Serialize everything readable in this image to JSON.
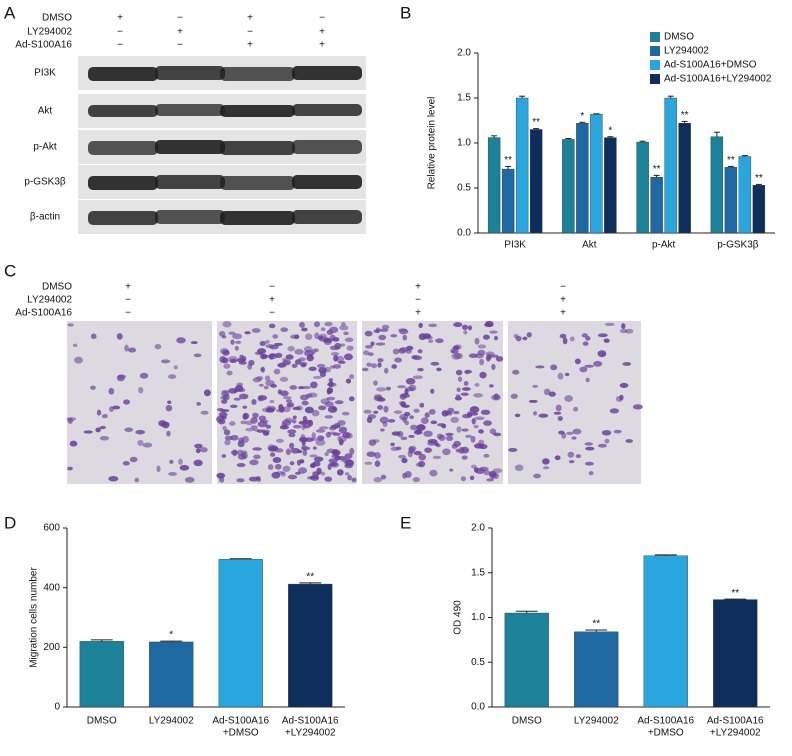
{
  "panel_labels": [
    "A",
    "B",
    "C",
    "D",
    "E"
  ],
  "blot": {
    "treatments": [
      {
        "name": "DMSO",
        "signs": [
          "+",
          "−",
          "+",
          "−"
        ]
      },
      {
        "name": "LY294002",
        "signs": [
          "−",
          "+",
          "−",
          "+"
        ]
      },
      {
        "name": "Ad-S100A16",
        "signs": [
          "−",
          "−",
          "+",
          "+"
        ]
      }
    ],
    "proteins": [
      "PI3K",
      "Akt",
      "p-Akt",
      "p-GSK3β",
      "β-actin"
    ]
  },
  "migration_images": {
    "treatments": [
      {
        "name": "DMSO",
        "signs": [
          "+",
          "−",
          "+",
          "−"
        ]
      },
      {
        "name": "LY294002",
        "signs": [
          "−",
          "+",
          "−",
          "+"
        ]
      },
      {
        "name": "Ad-S100A16",
        "signs": [
          "−",
          "−",
          "+",
          "+"
        ]
      }
    ]
  },
  "chart_data": [
    {
      "type": "bar",
      "ylabel": "Relative protein level",
      "categories": [
        "PI3K",
        "Akt",
        "p-Akt",
        "p-GSK3β"
      ],
      "series": [
        {
          "name": "DMSO",
          "color": "#1b8299",
          "values": [
            1.06,
            1.04,
            1.01,
            1.07
          ],
          "errors": [
            0.02,
            0.01,
            0.01,
            0.05
          ],
          "labels": [
            null,
            null,
            null,
            null
          ]
        },
        {
          "name": "LY294002",
          "color": "#1f69a3",
          "values": [
            0.71,
            1.22,
            0.62,
            0.73
          ],
          "errors": [
            0.03,
            0.01,
            0.02,
            0.01
          ],
          "labels": [
            "**",
            "*",
            "**",
            "**"
          ]
        },
        {
          "name": "Ad-S100A16+DMSO",
          "color": "#2aa6df",
          "values": [
            1.5,
            1.32,
            1.5,
            0.85
          ],
          "errors": [
            0.02,
            0.005,
            0.02,
            0.01
          ],
          "labels": [
            null,
            null,
            null,
            null
          ]
        },
        {
          "name": "Ad-S100A16+LY294002",
          "color": "#0e2f5b",
          "values": [
            1.15,
            1.06,
            1.22,
            0.53
          ],
          "errors": [
            0.01,
            0.01,
            0.02,
            0.01
          ],
          "labels": [
            "**",
            "*",
            "**",
            "**"
          ]
        }
      ],
      "ylim": [
        0,
        2
      ],
      "yticks": [
        {
          "value": 0,
          "label": "0.0"
        },
        0.5,
        {
          "value": 1,
          "label": "1.0"
        },
        1.5,
        {
          "value": 2,
          "label": "2.0"
        }
      ],
      "legend": "top-right"
    },
    {
      "type": "bar",
      "ylabel": "Migration cells number",
      "categories": [
        [
          "DMSO"
        ],
        [
          "LY294002"
        ],
        [
          "Ad-S100A16",
          "+DMSO"
        ],
        [
          "Ad-S100A16",
          "+LY294002"
        ]
      ],
      "values": [
        220,
        218,
        495,
        412
      ],
      "errors": [
        5,
        3,
        2,
        4
      ],
      "labels": [
        null,
        "*",
        null,
        "**"
      ],
      "colors": [
        "#1b8299",
        "#1f69a3",
        "#2aa6df",
        "#0e2f5b"
      ],
      "ylim": [
        0,
        600
      ],
      "yticks": [
        0,
        200,
        400,
        600
      ]
    },
    {
      "type": "bar",
      "ylabel": "OD 490",
      "categories": [
        [
          "DMSO"
        ],
        [
          "LY294002"
        ],
        [
          "Ad-S100A16",
          "+DMSO"
        ],
        [
          "Ad-S100A16",
          "+LY294002"
        ]
      ],
      "values": [
        1.05,
        0.84,
        1.69,
        1.2
      ],
      "errors": [
        0.02,
        0.02,
        0.01,
        0.005
      ],
      "labels": [
        null,
        "**",
        null,
        "**"
      ],
      "colors": [
        "#1b8299",
        "#1f69a3",
        "#2aa6df",
        "#0e2f5b"
      ],
      "ylim": [
        0,
        2
      ],
      "yticks": [
        {
          "value": 0,
          "label": "0.0"
        },
        0.5,
        {
          "value": 1,
          "label": "1.0"
        },
        1.5,
        {
          "value": 2,
          "label": "2.0"
        }
      ]
    }
  ]
}
